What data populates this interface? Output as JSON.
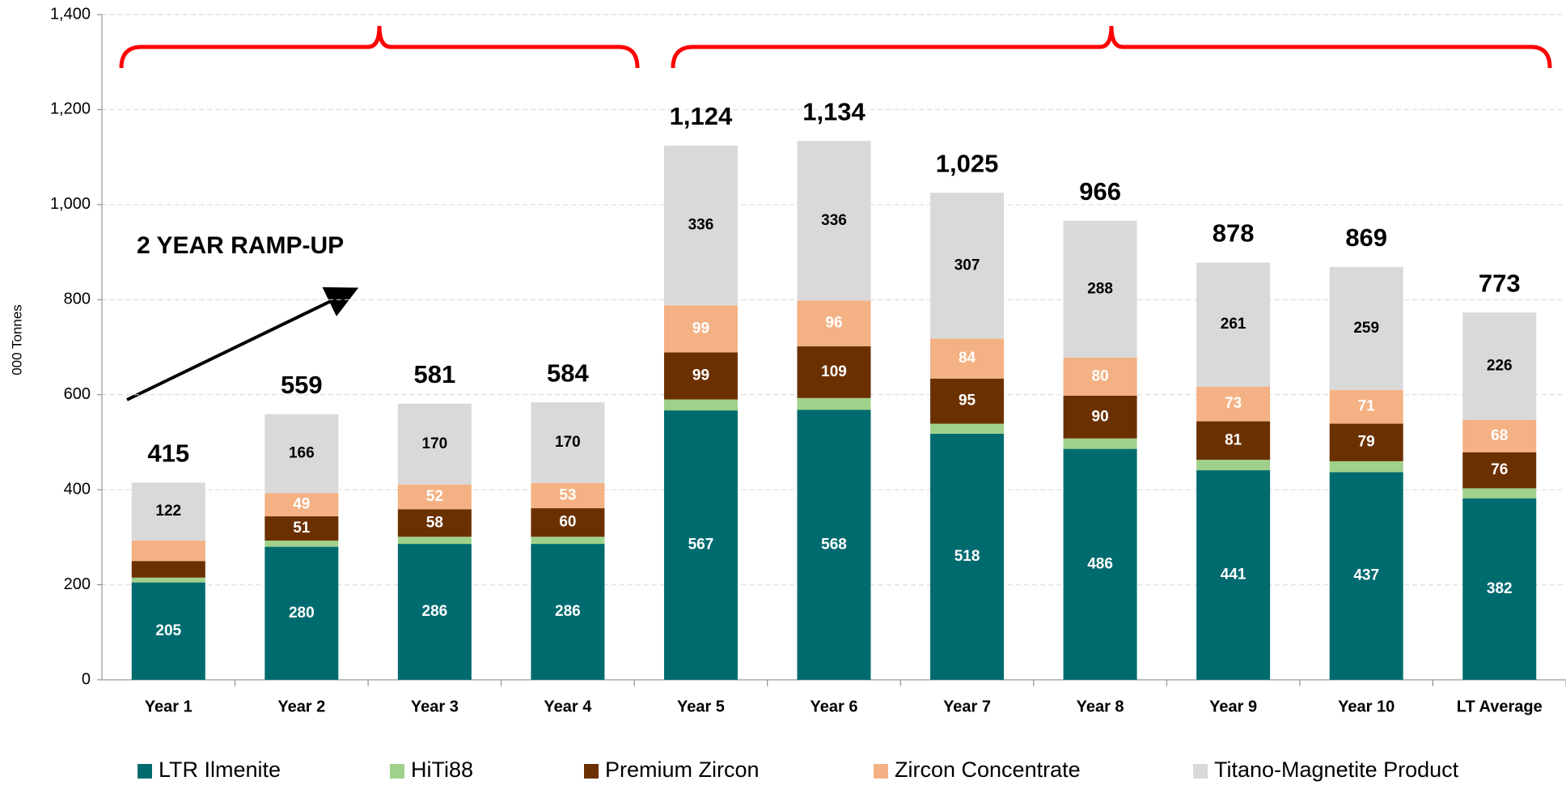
{
  "chart_data": {
    "type": "stacked_bar",
    "y_axis_label": "000 Tonnes",
    "annotation": "2 YEAR RAMP-UP",
    "categories": [
      "Year 1",
      "Year 2",
      "Year 3",
      "Year 4",
      "Year 5",
      "Year 6",
      "Year 7",
      "Year 8",
      "Year 9",
      "Year 10",
      "LT Average"
    ],
    "series": [
      {
        "name": "LTR Ilmenite",
        "color": "#006b6f",
        "label_color": "#ffffff",
        "values": [
          205,
          280,
          286,
          286,
          567,
          568,
          518,
          486,
          441,
          437,
          382
        ],
        "value_labels": [
          "205",
          "280",
          "286",
          "286",
          "567",
          "568",
          "518",
          "486",
          "441",
          "437",
          "382"
        ]
      },
      {
        "name": "HiTi88",
        "color": "#9fd18b",
        "values": [
          10,
          13,
          15,
          15,
          23,
          25,
          21,
          22,
          22,
          23,
          21
        ]
      },
      {
        "name": "Premium Zircon",
        "color": "#6b3000",
        "label_color": "#ffffff",
        "values": [
          35,
          51,
          58,
          60,
          99,
          109,
          95,
          90,
          81,
          79,
          76
        ],
        "value_labels": [
          null,
          "51",
          "58",
          "60",
          "99",
          "109",
          "95",
          "90",
          "81",
          "79",
          "76"
        ]
      },
      {
        "name": "Zircon Concentrate",
        "color": "#f4b183",
        "label_color": "#ffffff",
        "values": [
          43,
          49,
          52,
          53,
          99,
          96,
          84,
          80,
          73,
          71,
          68
        ],
        "value_labels": [
          null,
          "49",
          "52",
          "53",
          "99",
          "96",
          "84",
          "80",
          "73",
          "71",
          "68"
        ]
      },
      {
        "name": "Titano-Magnetite Product",
        "color": "#d9d9d9",
        "label_color": "#000000",
        "values": [
          122,
          166,
          170,
          170,
          336,
          336,
          307,
          288,
          261,
          259,
          226
        ],
        "value_labels": [
          "122",
          "166",
          "170",
          "170",
          "336",
          "336",
          "307",
          "288",
          "261",
          "259",
          "226"
        ]
      }
    ],
    "totals": [
      415,
      559,
      581,
      584,
      1124,
      1134,
      1025,
      966,
      878,
      869,
      773
    ],
    "total_labels": [
      "415",
      "559",
      "581",
      "584",
      "1,124",
      "1,134",
      "1,025",
      "966",
      "878",
      "869",
      "773"
    ],
    "ylim": [
      0,
      1400
    ],
    "yticks": [
      0,
      200,
      400,
      600,
      800,
      {
        "value": 1000,
        "label": "1,000"
      },
      {
        "value": 1200,
        "label": "1,200"
      },
      {
        "value": 1400,
        "label": "1,400"
      }
    ],
    "grid": true,
    "legend": "bottom"
  }
}
